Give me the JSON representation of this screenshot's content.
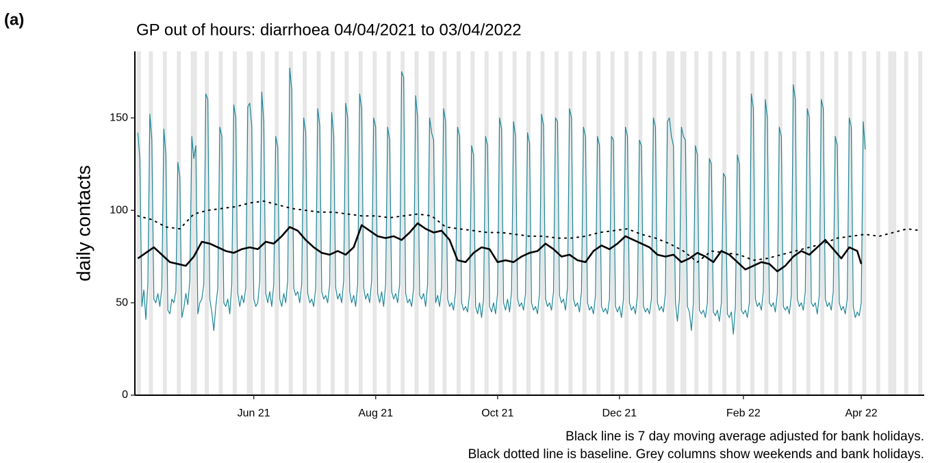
{
  "panel_label": "(a)",
  "chart_data": {
    "type": "line",
    "title": "GP out of hours: diarrhoea 04/04/2021 to 03/04/2022",
    "ylabel": "daily contacts",
    "notes": [
      "Black line is 7 day moving average adjusted for bank holidays.",
      "Black dotted line is baseline. Grey columns show weekends and bank holidays."
    ],
    "xlim": [
      -1.5,
      393.5
    ],
    "xticks": [
      {
        "value": 58,
        "label": "Jun 21"
      },
      {
        "value": 119,
        "label": "Aug 21"
      },
      {
        "value": 180,
        "label": "Oct 21"
      },
      {
        "value": 241,
        "label": "Dec 21"
      },
      {
        "value": 303,
        "label": "Feb 22"
      },
      {
        "value": 362,
        "label": "Apr 22"
      }
    ],
    "ylim": [
      0,
      186
    ],
    "yticks": [
      0,
      50,
      100,
      150
    ],
    "shade_color": "#e6e6e6",
    "shaded_days": [
      0,
      1,
      6,
      7,
      13,
      14,
      20,
      21,
      27,
      28,
      29,
      34,
      35,
      41,
      42,
      48,
      49,
      55,
      56,
      57,
      62,
      63,
      69,
      70,
      76,
      77,
      83,
      84,
      90,
      91,
      97,
      98,
      104,
      105,
      111,
      112,
      118,
      119,
      125,
      126,
      132,
      133,
      139,
      140,
      146,
      147,
      148,
      153,
      154,
      160,
      161,
      167,
      168,
      174,
      175,
      181,
      182,
      188,
      189,
      195,
      196,
      202,
      203,
      209,
      210,
      216,
      217,
      223,
      224,
      230,
      231,
      237,
      238,
      244,
      245,
      251,
      252,
      258,
      259,
      265,
      266,
      267,
      268,
      272,
      273,
      274,
      279,
      280,
      286,
      287,
      293,
      294,
      300,
      301,
      307,
      308,
      314,
      315,
      321,
      322,
      328,
      329,
      335,
      336,
      342,
      343,
      349,
      350,
      356,
      357,
      363,
      364,
      370,
      371,
      376,
      377,
      378,
      379,
      384,
      385,
      391,
      392
    ],
    "series": [
      {
        "color": "#1b8597",
        "width": 1.2,
        "style": "solid",
        "values": [
          142,
          128,
          48,
          57,
          41,
          60,
          152,
          138,
          52,
          50,
          55,
          48,
          58,
          144,
          130,
          46,
          44,
          52,
          50,
          56,
          126,
          118,
          42,
          47,
          55,
          49,
          62,
          140,
          128,
          135,
          44,
          50,
          52,
          60,
          163,
          160,
          52,
          45,
          35,
          48,
          58,
          145,
          140,
          50,
          48,
          52,
          44,
          60,
          157,
          150,
          55,
          48,
          54,
          50,
          58,
          156,
          158,
          145,
          52,
          48,
          50,
          62,
          164,
          148,
          55,
          50,
          56,
          48,
          60,
          140,
          134,
          52,
          48,
          55,
          50,
          62,
          177,
          165,
          58,
          54,
          56,
          50,
          60,
          150,
          142,
          55,
          50,
          52,
          48,
          58,
          155,
          146,
          56,
          52,
          54,
          50,
          60,
          153,
          140,
          58,
          52,
          55,
          50,
          62,
          158,
          150,
          56,
          50,
          54,
          48,
          60,
          163,
          155,
          58,
          52,
          55,
          50,
          62,
          150,
          145,
          55,
          50,
          56,
          48,
          60,
          145,
          138,
          56,
          52,
          55,
          50,
          60,
          175,
          172,
          55,
          50,
          52,
          48,
          58,
          162,
          150,
          54,
          52,
          55,
          48,
          60,
          150,
          142,
          138,
          50,
          54,
          48,
          58,
          155,
          148,
          52,
          48,
          50,
          46,
          56,
          145,
          140,
          50,
          46,
          48,
          45,
          55,
          135,
          130,
          48,
          44,
          50,
          42,
          52,
          140,
          135,
          48,
          45,
          50,
          44,
          55,
          150,
          144,
          50,
          46,
          52,
          45,
          56,
          148,
          140,
          52,
          48,
          50,
          46,
          55,
          142,
          136,
          50,
          46,
          48,
          44,
          55,
          152,
          146,
          52,
          48,
          50,
          46,
          56,
          150,
          148,
          54,
          50,
          52,
          46,
          58,
          155,
          150,
          52,
          48,
          50,
          45,
          56,
          145,
          140,
          50,
          46,
          48,
          44,
          54,
          140,
          135,
          48,
          45,
          47,
          44,
          52,
          140,
          138,
          48,
          45,
          48,
          42,
          52,
          145,
          140,
          50,
          46,
          48,
          44,
          54,
          138,
          135,
          48,
          45,
          47,
          44,
          52,
          150,
          145,
          50,
          46,
          48,
          45,
          55,
          148,
          150,
          140,
          135,
          50,
          40,
          52,
          145,
          140,
          138,
          48,
          45,
          35,
          50,
          135,
          130,
          46,
          44,
          46,
          42,
          50,
          128,
          125,
          45,
          43,
          46,
          40,
          50,
          120,
          118,
          44,
          42,
          45,
          33,
          48,
          130,
          125,
          46,
          44,
          46,
          42,
          50,
          163,
          155,
          52,
          48,
          50,
          46,
          56,
          160,
          150,
          50,
          48,
          50,
          45,
          55,
          145,
          140,
          48,
          46,
          48,
          44,
          54,
          168,
          160,
          52,
          48,
          50,
          46,
          56,
          155,
          150,
          50,
          48,
          50,
          44,
          54,
          160,
          155,
          52,
          48,
          50,
          46,
          56,
          140,
          135,
          50,
          46,
          48,
          44,
          52,
          150,
          145,
          48,
          42,
          45,
          43,
          50,
          148,
          133
        ]
      },
      {
        "color": "#000000",
        "width": 2.6,
        "style": "solid",
        "x": [
          0,
          4,
          8,
          12,
          16,
          20,
          24,
          28,
          32,
          36,
          40,
          44,
          48,
          52,
          56,
          60,
          64,
          68,
          72,
          76,
          80,
          84,
          88,
          92,
          96,
          100,
          104,
          108,
          112,
          116,
          120,
          124,
          128,
          132,
          136,
          140,
          144,
          148,
          152,
          156,
          160,
          164,
          168,
          172,
          176,
          180,
          184,
          188,
          192,
          196,
          200,
          204,
          208,
          212,
          216,
          220,
          224,
          228,
          232,
          236,
          240,
          244,
          248,
          252,
          256,
          260,
          264,
          268,
          272,
          276,
          280,
          284,
          288,
          292,
          296,
          300,
          304,
          308,
          312,
          316,
          320,
          324,
          328,
          332,
          336,
          340,
          344,
          348,
          352,
          356,
          360,
          362
        ],
        "values": [
          74,
          77,
          80,
          76,
          72,
          71,
          70,
          75,
          83,
          82,
          80,
          78,
          77,
          79,
          80,
          79,
          83,
          82,
          86,
          91,
          89,
          84,
          80,
          77,
          76,
          78,
          76,
          80,
          92,
          89,
          86,
          85,
          86,
          84,
          88,
          93,
          90,
          88,
          89,
          84,
          73,
          72,
          77,
          80,
          79,
          72,
          73,
          72,
          75,
          77,
          78,
          82,
          79,
          75,
          76,
          73,
          72,
          78,
          81,
          79,
          82,
          86,
          84,
          82,
          80,
          76,
          75,
          76,
          72,
          74,
          77,
          75,
          72,
          78,
          76,
          72,
          68,
          70,
          72,
          71,
          67,
          70,
          75,
          78,
          76,
          80,
          84,
          79,
          74,
          80,
          78,
          71
        ]
      },
      {
        "color": "#000000",
        "width": 2,
        "style": "dotted",
        "x": [
          0,
          7,
          14,
          21,
          28,
          35,
          42,
          49,
          56,
          63,
          70,
          77,
          84,
          91,
          98,
          105,
          112,
          119,
          126,
          133,
          140,
          147,
          154,
          161,
          168,
          175,
          182,
          189,
          196,
          203,
          210,
          217,
          224,
          231,
          238,
          245,
          252,
          259,
          266,
          273,
          280,
          287,
          294,
          301,
          308,
          315,
          322,
          329,
          336,
          343,
          350,
          357,
          364,
          371,
          378,
          385,
          392
        ],
        "values": [
          97,
          95,
          91,
          90,
          98,
          100,
          101,
          102,
          104,
          105,
          103,
          101,
          100,
          99,
          99,
          98,
          97,
          97,
          96,
          97,
          98,
          97,
          91,
          90,
          89,
          88,
          88,
          87,
          86,
          86,
          85,
          85,
          86,
          88,
          89,
          90,
          87,
          85,
          82,
          78,
          72,
          78,
          77,
          76,
          73,
          74,
          76,
          78,
          80,
          82,
          85,
          86,
          87,
          86,
          88,
          90,
          89
        ]
      }
    ]
  }
}
